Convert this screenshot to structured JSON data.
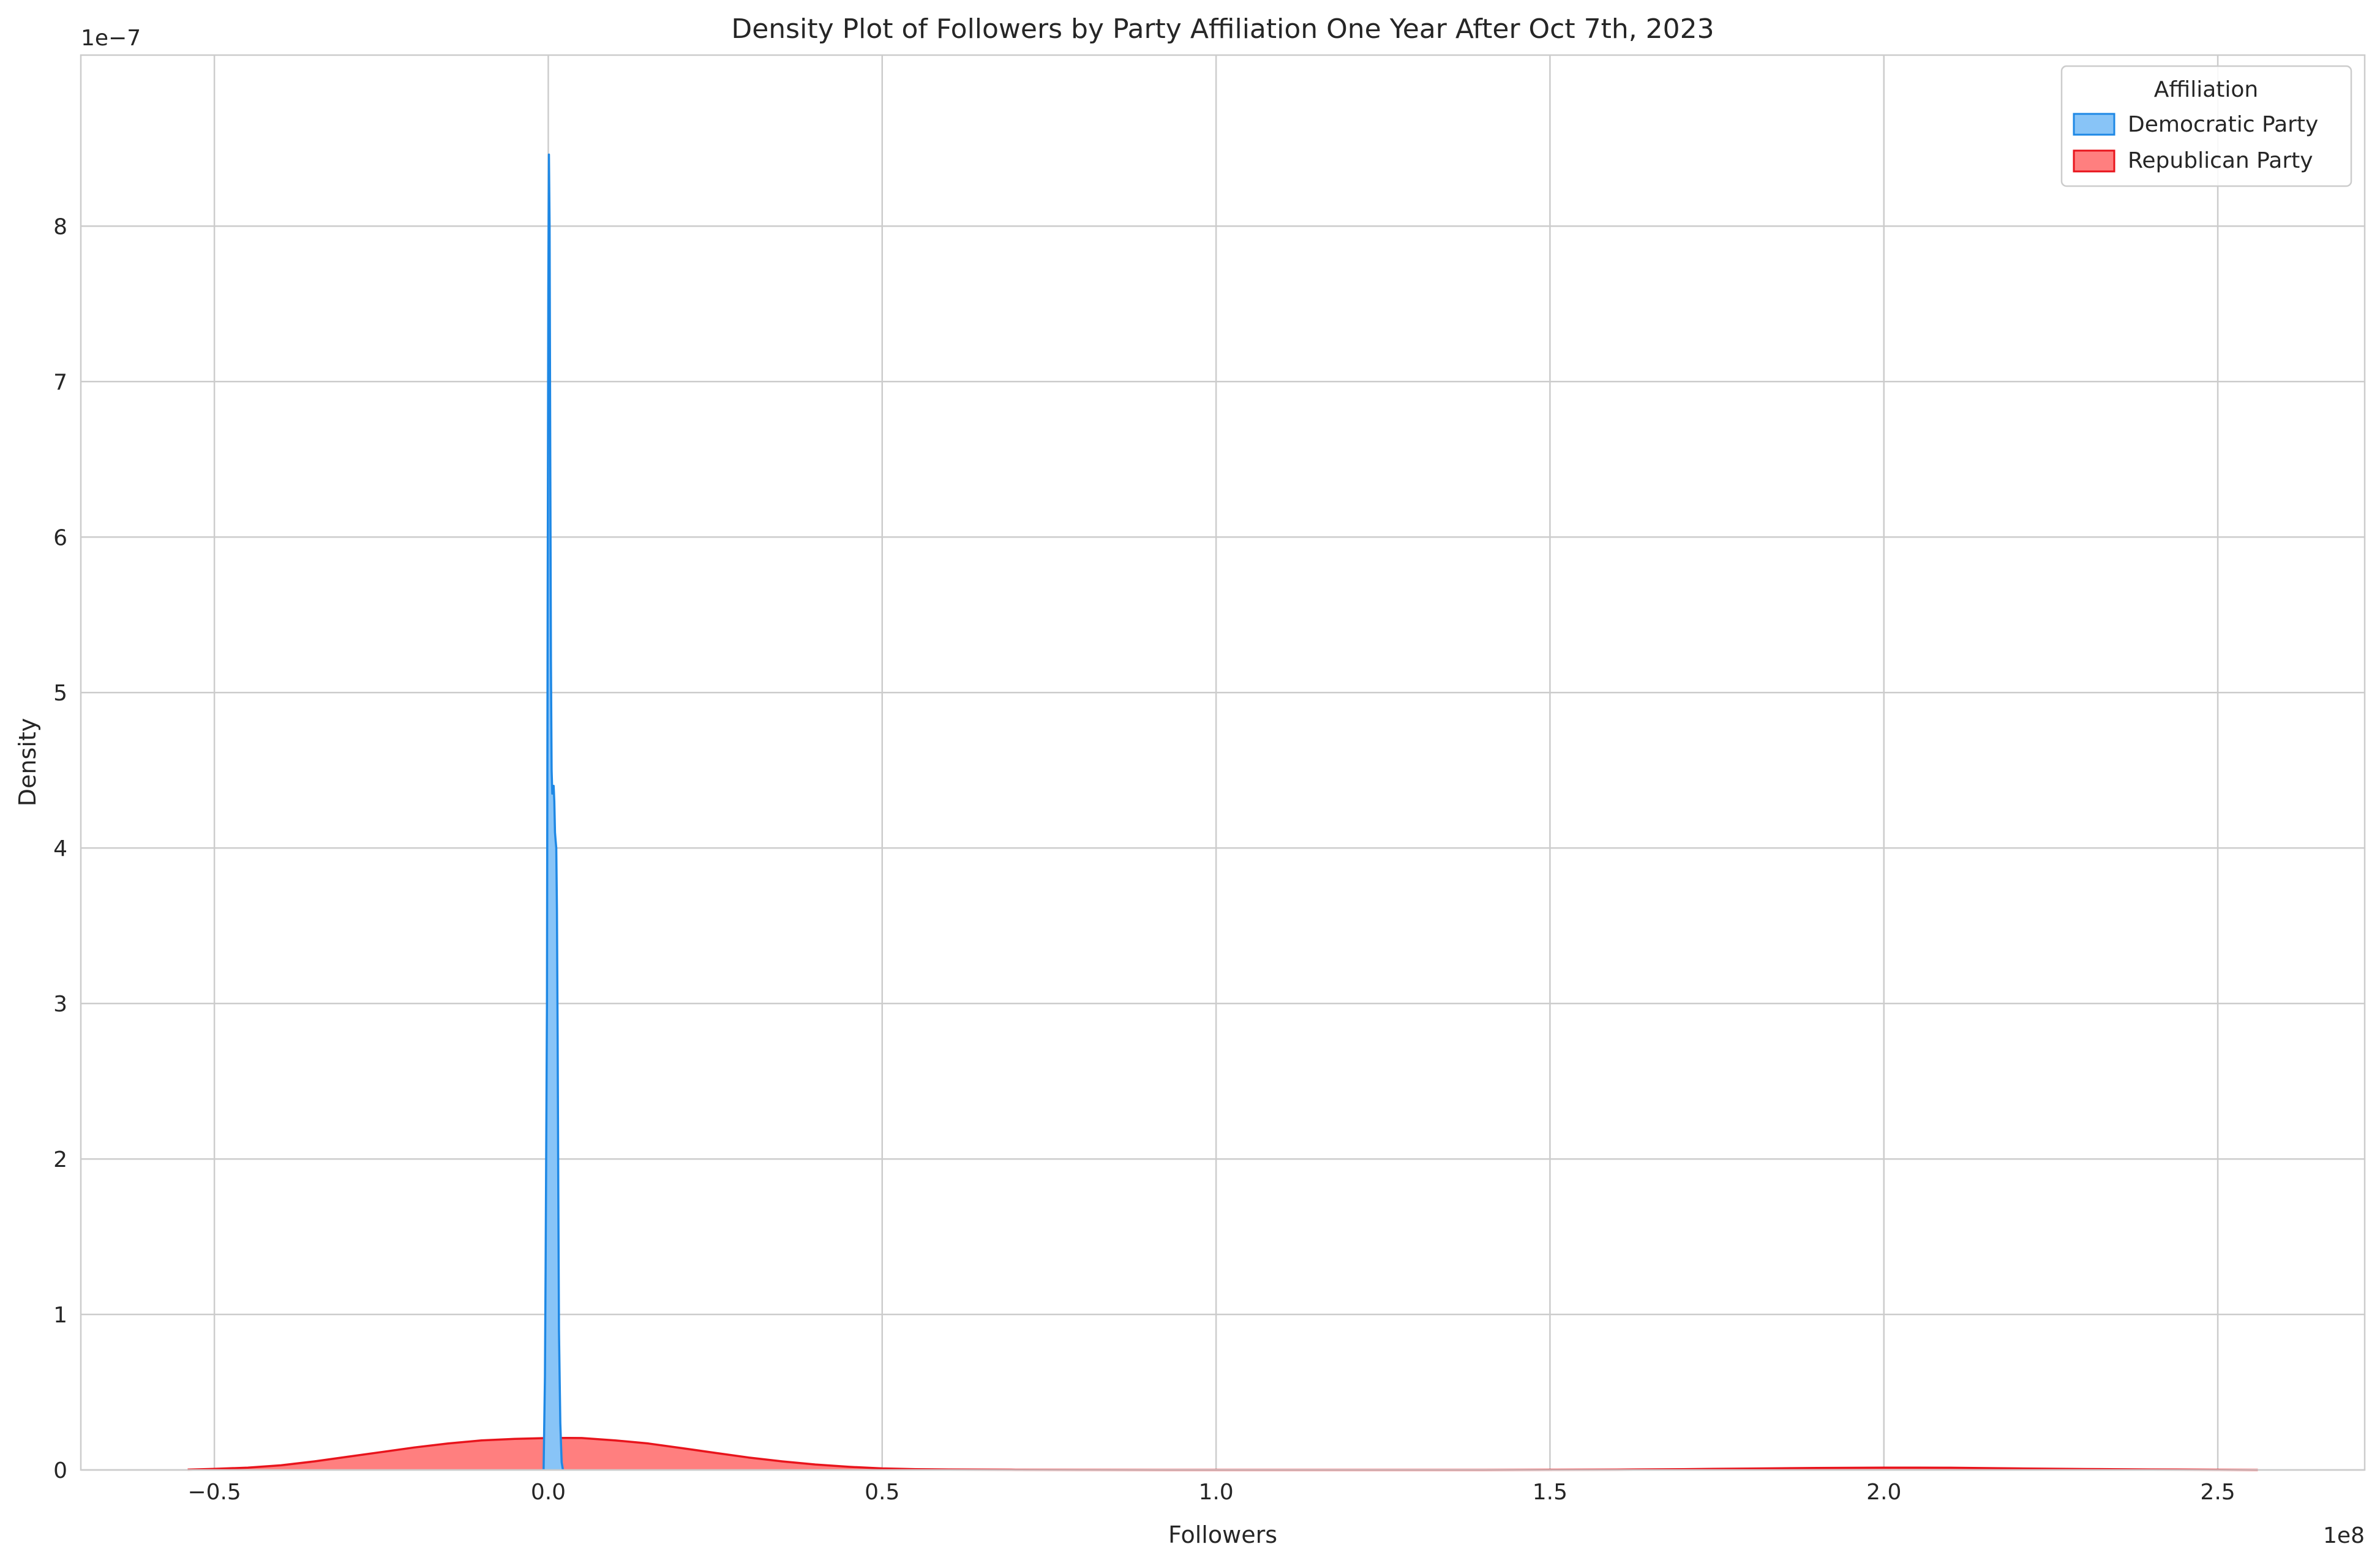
{
  "chart_data": {
    "type": "area",
    "title": "Density Plot of Followers by Party Affiliation One Year After Oct 7th, 2023",
    "xlabel": "Followers",
    "ylabel": "Density",
    "x_offset_label": "1e8",
    "y_offset_label": "1e−7",
    "xlim": [
      -0.7,
      2.72
    ],
    "ylim": [
      0,
      9.1
    ],
    "x_unit_multiplier": 100000000,
    "y_unit_multiplier": 1e-07,
    "x_ticks": [
      -0.5,
      0.0,
      0.5,
      1.0,
      1.5,
      2.0,
      2.5
    ],
    "x_tick_labels": [
      "−0.5",
      "0.0",
      "0.5",
      "1.0",
      "1.5",
      "2.0",
      "2.5"
    ],
    "y_ticks": [
      0,
      1,
      2,
      3,
      4,
      5,
      6,
      7,
      8
    ],
    "y_tick_labels": [
      "0",
      "1",
      "2",
      "3",
      "4",
      "5",
      "6",
      "7",
      "8"
    ],
    "grid": true,
    "legend": {
      "title": "Affiliation",
      "placement": "top-right"
    },
    "series": [
      {
        "name": "Republican Party",
        "color": "#e8141c",
        "fill": "#ff7f7f",
        "x": [
          -0.54,
          -0.5,
          -0.45,
          -0.4,
          -0.35,
          -0.3,
          -0.25,
          -0.2,
          -0.15,
          -0.1,
          -0.05,
          0.0,
          0.03,
          0.05,
          0.1,
          0.15,
          0.2,
          0.25,
          0.3,
          0.35,
          0.4,
          0.45,
          0.5,
          0.55,
          0.6,
          0.7,
          0.8,
          1.0,
          1.2,
          1.4,
          1.6,
          1.7,
          1.8,
          1.9,
          2.0,
          2.05,
          2.1,
          2.2,
          2.3,
          2.4,
          2.5,
          2.56
        ],
        "y": [
          0.002,
          0.007,
          0.015,
          0.03,
          0.055,
          0.085,
          0.115,
          0.145,
          0.17,
          0.19,
          0.2,
          0.205,
          0.206,
          0.205,
          0.19,
          0.17,
          0.14,
          0.11,
          0.08,
          0.055,
          0.035,
          0.02,
          0.01,
          0.005,
          0.003,
          0.001,
          0.0005,
          0.0,
          0.0,
          0.0,
          0.002,
          0.005,
          0.009,
          0.013,
          0.015,
          0.015,
          0.014,
          0.01,
          0.006,
          0.003,
          0.001,
          0.0
        ]
      },
      {
        "name": "Democratic Party",
        "color": "#1e88e5",
        "fill": "#88c4f7",
        "x": [
          -0.007,
          -0.005,
          -0.004,
          -0.002,
          -0.001,
          0.0,
          0.001,
          0.002,
          0.003,
          0.004,
          0.005,
          0.006,
          0.007,
          0.008,
          0.009,
          0.01,
          0.011,
          0.012,
          0.013,
          0.014,
          0.015,
          0.016,
          0.018,
          0.02,
          0.022
        ],
        "y": [
          0.0,
          0.6,
          1.3,
          3.0,
          5.5,
          7.6,
          8.46,
          8.0,
          6.5,
          5.2,
          4.5,
          4.35,
          4.38,
          4.4,
          4.3,
          4.1,
          4.05,
          4.0,
          3.6,
          2.8,
          1.8,
          0.9,
          0.3,
          0.05,
          0.0
        ]
      }
    ]
  }
}
